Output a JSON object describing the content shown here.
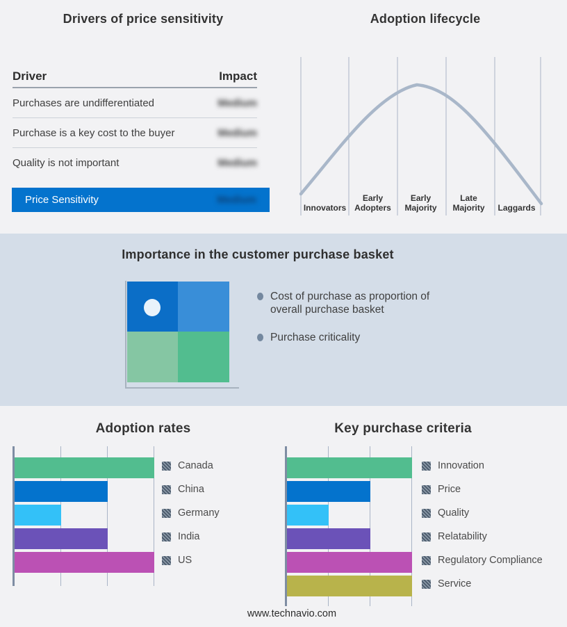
{
  "page": {
    "background": "#f2f2f4",
    "band_background": "#d4dde8",
    "footer": "www.technavio.com"
  },
  "drivers_panel": {
    "title": "Drivers of price sensitivity",
    "columns": {
      "driver": "Driver",
      "impact": "Impact"
    },
    "rows": [
      {
        "driver": "Purchases are undifferentiated",
        "impact": "Medium"
      },
      {
        "driver": "Purchase is a key cost to the buyer",
        "impact": "Medium"
      },
      {
        "driver": "Quality is not important",
        "impact": "Medium"
      }
    ],
    "highlight_row": {
      "driver": "Price Sensitivity",
      "impact": "Medium"
    },
    "highlight_color": "#0473cd",
    "impact_values_blurred": true
  },
  "lifecycle_panel": {
    "title": "Adoption lifecycle",
    "stages": [
      "Innovators",
      "Early Adopters",
      "Early Majority",
      "Late Majority",
      "Laggards"
    ],
    "curve_color": "#a9b7c9",
    "gridline_color": "#aab4c6"
  },
  "basket_panel": {
    "title": "Importance in the customer purchase basket",
    "bullets": [
      "Cost of purchase as proportion of overall purchase basket",
      "Purchase criticality"
    ],
    "quadrant_colors": {
      "top_left": "#0b6ec7",
      "top_right": "#398ed8",
      "bottom_left": "#85c6a3",
      "bottom_right": "#52bd8f"
    },
    "dot_color": "#e9f3fb"
  },
  "chart_data": [
    {
      "type": "table",
      "title": "Drivers of price sensitivity",
      "columns": [
        "Driver",
        "Impact"
      ],
      "rows": [
        [
          "Purchases are undifferentiated",
          "Medium"
        ],
        [
          "Purchase is a key cost to the buyer",
          "Medium"
        ],
        [
          "Quality is not important",
          "Medium"
        ],
        [
          "Price Sensitivity",
          "Medium"
        ]
      ]
    },
    {
      "type": "line",
      "title": "Adoption lifecycle",
      "categories": [
        "Innovators",
        "Early Adopters",
        "Early Majority",
        "Late Majority",
        "Laggards"
      ],
      "description": "Bell-shaped adoption curve rising from Innovators, peaking at Early Majority, falling through Laggards",
      "grid": true,
      "legend": false
    },
    {
      "type": "bar",
      "title": "Adoption rates",
      "orientation": "horizontal",
      "categories": [
        "Canada",
        "China",
        "Germany",
        "India",
        "US"
      ],
      "values": [
        3,
        2,
        1,
        2,
        3
      ],
      "xlim": [
        0,
        3
      ],
      "colors": [
        "#52bd8f",
        "#0473cd",
        "#33c1f8",
        "#6b52b8",
        "#bb51b4"
      ],
      "legend_position": "right",
      "grid": true
    },
    {
      "type": "bar",
      "title": "Key purchase criteria",
      "orientation": "horizontal",
      "categories": [
        "Innovation",
        "Price",
        "Quality",
        "Relatability",
        "Regulatory Compliance",
        "Service"
      ],
      "values": [
        3,
        2,
        1,
        2,
        3,
        3
      ],
      "xlim": [
        0,
        3
      ],
      "colors": [
        "#52bd8f",
        "#0473cd",
        "#33c1f8",
        "#6b52b8",
        "#bb51b4",
        "#b8b34b"
      ],
      "legend_position": "right",
      "grid": true
    }
  ]
}
